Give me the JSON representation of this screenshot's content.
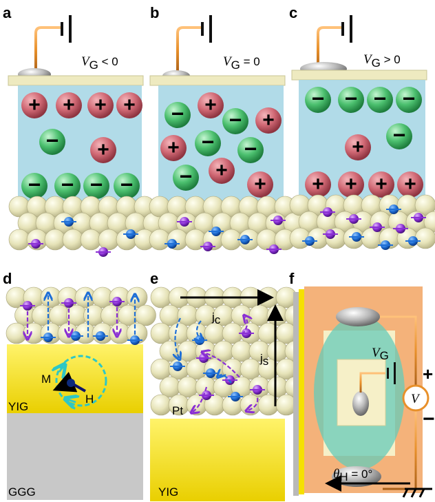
{
  "panels": [
    {
      "id": "a",
      "label": "a",
      "vg": "V",
      "vg_sub": "G",
      "vg_rel": " < 0"
    },
    {
      "id": "b",
      "label": "b",
      "vg": "V",
      "vg_sub": "G",
      "vg_rel": " = 0"
    },
    {
      "id": "c",
      "label": "c",
      "vg": "V",
      "vg_sub": "G",
      "vg_rel": " > 0"
    },
    {
      "id": "d",
      "label": "d"
    },
    {
      "id": "e",
      "label": "e"
    },
    {
      "id": "f",
      "label": "f"
    }
  ],
  "ions": {
    "plus": "+",
    "minus": "−"
  },
  "panel_d": {
    "m_label": "M",
    "h_label": "H",
    "yig_label": "YIG",
    "ggg_label": "GGG"
  },
  "panel_e": {
    "jc_main": "j",
    "jc_sub": "c",
    "js_main": "j",
    "js_sub": "s",
    "pt_label": "Pt",
    "yig_label": "YIG"
  },
  "panel_f": {
    "vg_main": "V",
    "vg_sub": "G",
    "meter": "V",
    "plus": "+",
    "minus": "−",
    "theta": "θ",
    "theta_sub": "H",
    "theta_val": " = 0°"
  },
  "colors": {
    "electrolyte": "#a9d7e6",
    "cap": "#eeeac0",
    "ion_plus": "#d9737c",
    "ion_minus": "#5ac77a",
    "atom": "#ecebc6",
    "spin_blue": "#1f6fd6",
    "spin_purple": "#8a2fd4",
    "wire": "#e8902a",
    "yig": "#f5e000",
    "ggg": "#c8c8c8",
    "substrate": "#f4b27a",
    "teal": "#2ec7c5"
  }
}
